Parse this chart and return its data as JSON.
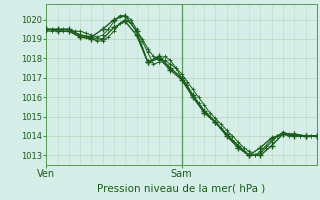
{
  "xlabel": "Pression niveau de la mer( hPa )",
  "bg_color": "#d5eee8",
  "grid_color_h": "#b8d4b8",
  "grid_color_v": "#c8d8c0",
  "line_color": "#1a5c1a",
  "ylim": [
    1012.5,
    1020.8
  ],
  "xlim": [
    0,
    48
  ],
  "yticks": [
    1013,
    1014,
    1015,
    1016,
    1017,
    1018,
    1019,
    1020
  ],
  "xtick_positions": [
    0,
    24
  ],
  "xtick_labels": [
    "Ven",
    "Sam"
  ],
  "vline_x": 24,
  "series1_x": [
    0,
    1,
    2,
    3,
    4,
    5,
    6,
    7,
    8,
    9,
    10,
    11,
    12,
    13,
    14,
    15,
    16,
    17,
    18,
    19,
    20,
    21,
    22,
    23,
    24,
    25,
    26,
    27,
    28,
    29,
    30,
    31,
    32,
    33,
    34,
    35,
    36,
    37,
    38,
    39,
    40,
    41,
    42,
    43,
    44,
    45,
    46,
    47,
    48
  ],
  "series1_y": [
    1019.4,
    1019.4,
    1019.5,
    1019.5,
    1019.5,
    1019.4,
    1019.4,
    1019.3,
    1019.2,
    1019.1,
    1019.2,
    1019.5,
    1019.9,
    1020.2,
    1020.2,
    1020.0,
    1019.5,
    1018.9,
    1018.3,
    1017.7,
    1017.8,
    1018.1,
    1017.9,
    1017.5,
    1017.0,
    1016.6,
    1016.1,
    1015.7,
    1015.3,
    1015.0,
    1014.7,
    1014.4,
    1014.1,
    1013.8,
    1013.5,
    1013.2,
    1013.0,
    1013.0,
    1013.2,
    1013.5,
    1013.8,
    1014.0,
    1014.1,
    1014.0,
    1014.0,
    1014.0,
    1014.0,
    1014.0,
    1014.0
  ],
  "series2_x": [
    0,
    1,
    2,
    3,
    4,
    5,
    6,
    7,
    8,
    9,
    10,
    11,
    12,
    13,
    14,
    15,
    16,
    17,
    18,
    19,
    20,
    21,
    22,
    23,
    24,
    25,
    26,
    27,
    28,
    29,
    30,
    31,
    32,
    33,
    34,
    35,
    36,
    37,
    38,
    39,
    40,
    41,
    42,
    43,
    44,
    45,
    46,
    47,
    48
  ],
  "series2_y": [
    1019.5,
    1019.5,
    1019.5,
    1019.4,
    1019.4,
    1019.3,
    1019.2,
    1019.1,
    1019.0,
    1018.9,
    1018.9,
    1019.1,
    1019.4,
    1019.8,
    1020.0,
    1019.8,
    1019.4,
    1019.0,
    1018.5,
    1018.1,
    1017.9,
    1017.9,
    1017.7,
    1017.5,
    1017.2,
    1016.8,
    1016.4,
    1016.0,
    1015.6,
    1015.2,
    1014.9,
    1014.6,
    1014.3,
    1014.0,
    1013.7,
    1013.4,
    1013.2,
    1013.0,
    1013.1,
    1013.4,
    1013.7,
    1014.0,
    1014.2,
    1014.1,
    1014.0,
    1014.0,
    1014.0,
    1014.0,
    1014.0
  ],
  "series3_x": [
    0,
    2,
    4,
    6,
    8,
    10,
    12,
    14,
    16,
    18,
    20,
    22,
    24,
    26,
    28,
    30,
    32,
    34,
    36,
    38,
    40,
    42,
    44,
    46,
    48
  ],
  "series3_y": [
    1019.5,
    1019.5,
    1019.5,
    1019.2,
    1019.1,
    1019.5,
    1020.0,
    1020.2,
    1019.4,
    1017.8,
    1018.1,
    1017.5,
    1017.0,
    1016.1,
    1015.3,
    1014.7,
    1014.1,
    1013.5,
    1013.0,
    1013.4,
    1013.9,
    1014.1,
    1014.0,
    1014.0,
    1014.0
  ],
  "series4_x": [
    0,
    2,
    4,
    6,
    8,
    10,
    12,
    14,
    16,
    18,
    20,
    22,
    24,
    26,
    28,
    30,
    32,
    34,
    36,
    38,
    40,
    42,
    44,
    46,
    48
  ],
  "series4_y": [
    1019.5,
    1019.4,
    1019.4,
    1019.1,
    1019.0,
    1019.0,
    1019.6,
    1019.9,
    1019.2,
    1017.8,
    1018.0,
    1017.4,
    1016.9,
    1016.0,
    1015.2,
    1014.7,
    1014.0,
    1013.4,
    1013.0,
    1013.0,
    1013.5,
    1014.1,
    1014.1,
    1014.0,
    1014.0
  ]
}
